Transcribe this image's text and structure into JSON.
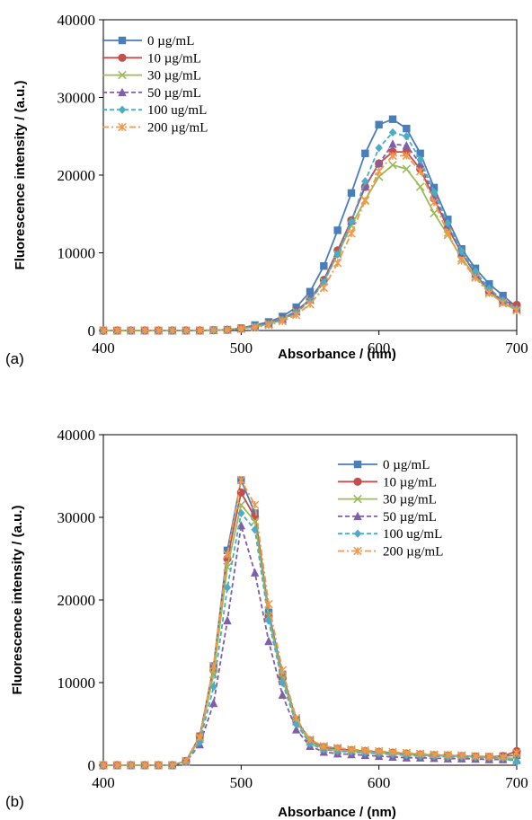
{
  "chart_data": [
    {
      "panel_label": "(a)",
      "type": "line",
      "xlabel": "Absorbance / (nm)",
      "ylabel": "Fluorescence intensity / (a.u.)",
      "xlim": [
        400,
        700
      ],
      "ylim": [
        0,
        40000
      ],
      "xticks": [
        "400",
        "500",
        "600",
        "700"
      ],
      "yticks": [
        "0",
        "10000",
        "20000",
        "30000",
        "40000"
      ],
      "legend_position": "top-left",
      "x": [
        400,
        410,
        420,
        430,
        440,
        450,
        460,
        470,
        480,
        490,
        500,
        510,
        520,
        530,
        540,
        550,
        560,
        570,
        580,
        590,
        600,
        610,
        620,
        630,
        640,
        650,
        660,
        670,
        680,
        690,
        700
      ],
      "series": [
        {
          "name": "0 µg/mL",
          "color": "#4a7ebb",
          "marker": "square",
          "dash": "solid",
          "values": [
            0,
            0,
            0,
            0,
            0,
            0,
            0,
            0,
            50,
            100,
            300,
            700,
            1100,
            1800,
            3000,
            5000,
            8300,
            12900,
            17700,
            22800,
            26500,
            27200,
            26000,
            22800,
            18400,
            14300,
            10500,
            8000,
            6000,
            4500,
            3000
          ]
        },
        {
          "name": "10 µg/mL",
          "color": "#c0504d",
          "marker": "circle",
          "dash": "solid",
          "values": [
            0,
            0,
            0,
            0,
            0,
            0,
            0,
            0,
            40,
            90,
            250,
            500,
            900,
            1500,
            2500,
            4000,
            6500,
            10300,
            14200,
            18500,
            21500,
            23000,
            23000,
            20800,
            17000,
            13200,
            10000,
            7300,
            5000,
            3800,
            3300
          ]
        },
        {
          "name": "30 µg/mL",
          "color": "#9bbb59",
          "marker": "x",
          "dash": "solid",
          "values": [
            0,
            0,
            0,
            0,
            0,
            0,
            0,
            0,
            40,
            90,
            250,
            500,
            850,
            1400,
            2400,
            3900,
            6300,
            9800,
            13500,
            16800,
            19800,
            21300,
            20800,
            18500,
            15100,
            12300,
            9300,
            7000,
            5000,
            3500,
            2600
          ]
        },
        {
          "name": "50 µg/mL",
          "color": "#7f5fa8",
          "marker": "triangle",
          "dash": "dash",
          "values": [
            0,
            0,
            0,
            0,
            0,
            0,
            0,
            0,
            40,
            90,
            250,
            500,
            900,
            1500,
            2500,
            4000,
            6400,
            10000,
            14100,
            18500,
            21500,
            24000,
            23800,
            21500,
            17200,
            13500,
            10000,
            7300,
            5200,
            3800,
            2800
          ]
        },
        {
          "name": "100 ug/mL",
          "color": "#4bacc6",
          "marker": "diamond",
          "dash": "dash",
          "values": [
            0,
            0,
            0,
            0,
            0,
            0,
            0,
            0,
            40,
            90,
            250,
            500,
            850,
            1400,
            2300,
            3800,
            6200,
            9800,
            14000,
            19200,
            23500,
            25500,
            25000,
            22000,
            17800,
            13800,
            10200,
            7600,
            5400,
            3900,
            2800
          ]
        },
        {
          "name": "200 µg/mL",
          "color": "#f79646",
          "marker": "star",
          "dash": "dashdot",
          "values": [
            0,
            0,
            0,
            0,
            0,
            0,
            0,
            0,
            40,
            90,
            200,
            400,
            700,
            1200,
            2000,
            3400,
            5500,
            8700,
            12500,
            16700,
            20500,
            22500,
            22500,
            20500,
            16500,
            12600,
            9000,
            6800,
            4800,
            3600,
            2600
          ]
        }
      ]
    },
    {
      "panel_label": "(b)",
      "type": "line",
      "xlabel": "Absorbance / (nm)",
      "ylabel": "Fluorescence intensity / (a.u.)",
      "xlim": [
        400,
        700
      ],
      "ylim": [
        0,
        40000
      ],
      "xticks": [
        "400",
        "500",
        "600",
        "700"
      ],
      "yticks": [
        "0",
        "10000",
        "20000",
        "30000",
        "40000"
      ],
      "legend_position": "top-right",
      "x": [
        400,
        410,
        420,
        430,
        440,
        450,
        460,
        470,
        480,
        490,
        500,
        510,
        520,
        530,
        540,
        550,
        560,
        570,
        580,
        590,
        600,
        610,
        620,
        630,
        640,
        650,
        660,
        670,
        680,
        690,
        700
      ],
      "series": [
        {
          "name": "0 µg/mL",
          "color": "#4a7ebb",
          "marker": "square",
          "dash": "solid",
          "values": [
            0,
            0,
            0,
            0,
            0,
            0,
            500,
            3500,
            12000,
            26000,
            34500,
            30500,
            18500,
            11000,
            5500,
            3000,
            2200,
            2000,
            1800,
            1600,
            1500,
            1400,
            1300,
            1250,
            1200,
            1150,
            1100,
            1050,
            1000,
            1100,
            1200
          ]
        },
        {
          "name": "10 µg/mL",
          "color": "#c0504d",
          "marker": "circle",
          "dash": "solid",
          "values": [
            0,
            0,
            0,
            0,
            0,
            0,
            500,
            3500,
            11500,
            25000,
            33000,
            30000,
            18000,
            10500,
            5400,
            2900,
            2100,
            1900,
            1800,
            1700,
            1600,
            1500,
            1400,
            1300,
            1200,
            1150,
            1100,
            1050,
            1000,
            1100,
            1700
          ]
        },
        {
          "name": "30 µg/mL",
          "color": "#9bbb59",
          "marker": "x",
          "dash": "solid",
          "values": [
            0,
            0,
            0,
            0,
            0,
            0,
            500,
            3200,
            11000,
            24000,
            31500,
            29500,
            18000,
            10500,
            5300,
            2800,
            2000,
            1800,
            1700,
            1600,
            1500,
            1400,
            1300,
            1200,
            1150,
            1100,
            1050,
            1000,
            950,
            900,
            800
          ]
        },
        {
          "name": "50 µg/mL",
          "color": "#7f5fa8",
          "marker": "triangle",
          "dash": "dash",
          "values": [
            0,
            0,
            0,
            0,
            0,
            0,
            400,
            2500,
            7500,
            17500,
            29000,
            23300,
            15000,
            8500,
            4300,
            2300,
            1600,
            1400,
            1300,
            1200,
            1100,
            1000,
            900,
            900,
            850,
            800,
            800,
            750,
            700,
            700,
            600
          ]
        },
        {
          "name": "100 ug/mL",
          "color": "#4bacc6",
          "marker": "diamond",
          "dash": "dash",
          "values": [
            0,
            0,
            0,
            0,
            0,
            0,
            400,
            2800,
            9500,
            21500,
            30500,
            28500,
            17500,
            10000,
            5000,
            2600,
            1900,
            1700,
            1600,
            1500,
            1400,
            1300,
            1200,
            1100,
            1100,
            1000,
            1000,
            950,
            900,
            850,
            400
          ]
        },
        {
          "name": "200 µg/mL",
          "color": "#f79646",
          "marker": "star",
          "dash": "dashdot",
          "values": [
            0,
            0,
            0,
            0,
            0,
            0,
            500,
            3400,
            12000,
            25500,
            34500,
            31500,
            19500,
            11500,
            5700,
            3100,
            2300,
            2100,
            1900,
            1800,
            1700,
            1600,
            1500,
            1400,
            1300,
            1250,
            1200,
            1100,
            1050,
            1000,
            1500
          ]
        }
      ]
    }
  ]
}
